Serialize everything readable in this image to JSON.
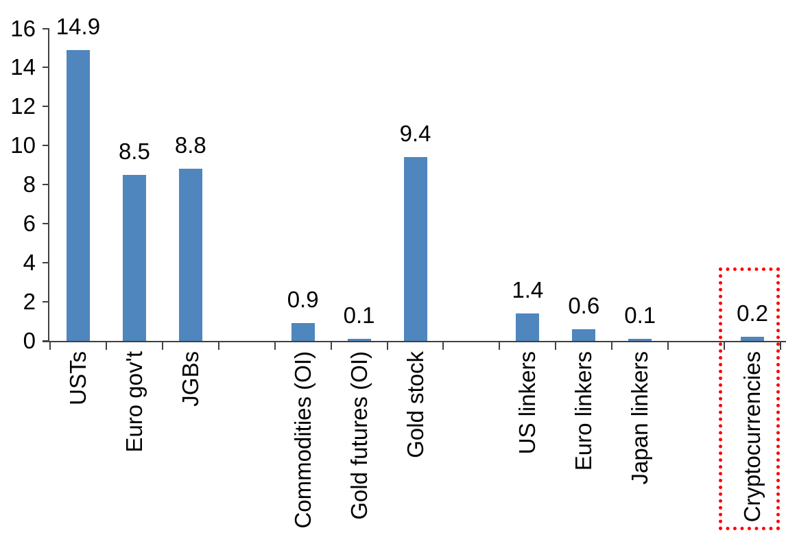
{
  "chart_data": {
    "type": "bar",
    "title": "",
    "xlabel": "",
    "ylabel": "",
    "categories": [
      "USTs",
      "Euro gov't",
      "JGBs",
      "Commodities (OI)",
      "Gold futures (OI)",
      "Gold stock",
      "US linkers",
      "Euro linkers",
      "Japan linkers",
      "Cryptocurrencies"
    ],
    "values": [
      14.9,
      8.5,
      8.8,
      0.9,
      0.1,
      9.4,
      1.4,
      0.6,
      0.1,
      0.2
    ],
    "data_labels": [
      "14.9",
      "8.5",
      "8.8",
      "0.9",
      "0.1",
      "9.4",
      "1.4",
      "0.6",
      "0.1",
      "0.2"
    ],
    "category_slots": [
      1,
      2,
      3,
      5,
      6,
      7,
      9,
      10,
      11,
      13
    ],
    "slot_count": 13,
    "groups": [
      [
        "USTs",
        "Euro gov't",
        "JGBs"
      ],
      [
        "Commodities (OI)",
        "Gold futures (OI)",
        "Gold stock"
      ],
      [
        "US linkers",
        "Euro linkers",
        "Japan linkers"
      ],
      [
        "Cryptocurrencies"
      ]
    ],
    "ylim": [
      0,
      16
    ],
    "yticks": [
      "16",
      "14",
      "12",
      "10",
      "8",
      "6",
      "4",
      "2",
      "0"
    ],
    "ytick_values": [
      16,
      14,
      12,
      10,
      8,
      6,
      4,
      2,
      0
    ],
    "grid": false,
    "legend": false,
    "colors": {
      "bar": "#4E86BD",
      "axis": "#404040",
      "text": "#000000",
      "highlight_box": "#FF0000"
    },
    "highlight": {
      "category": "Cryptocurrencies",
      "value": 0.2,
      "style": "red-dotted-box"
    }
  }
}
